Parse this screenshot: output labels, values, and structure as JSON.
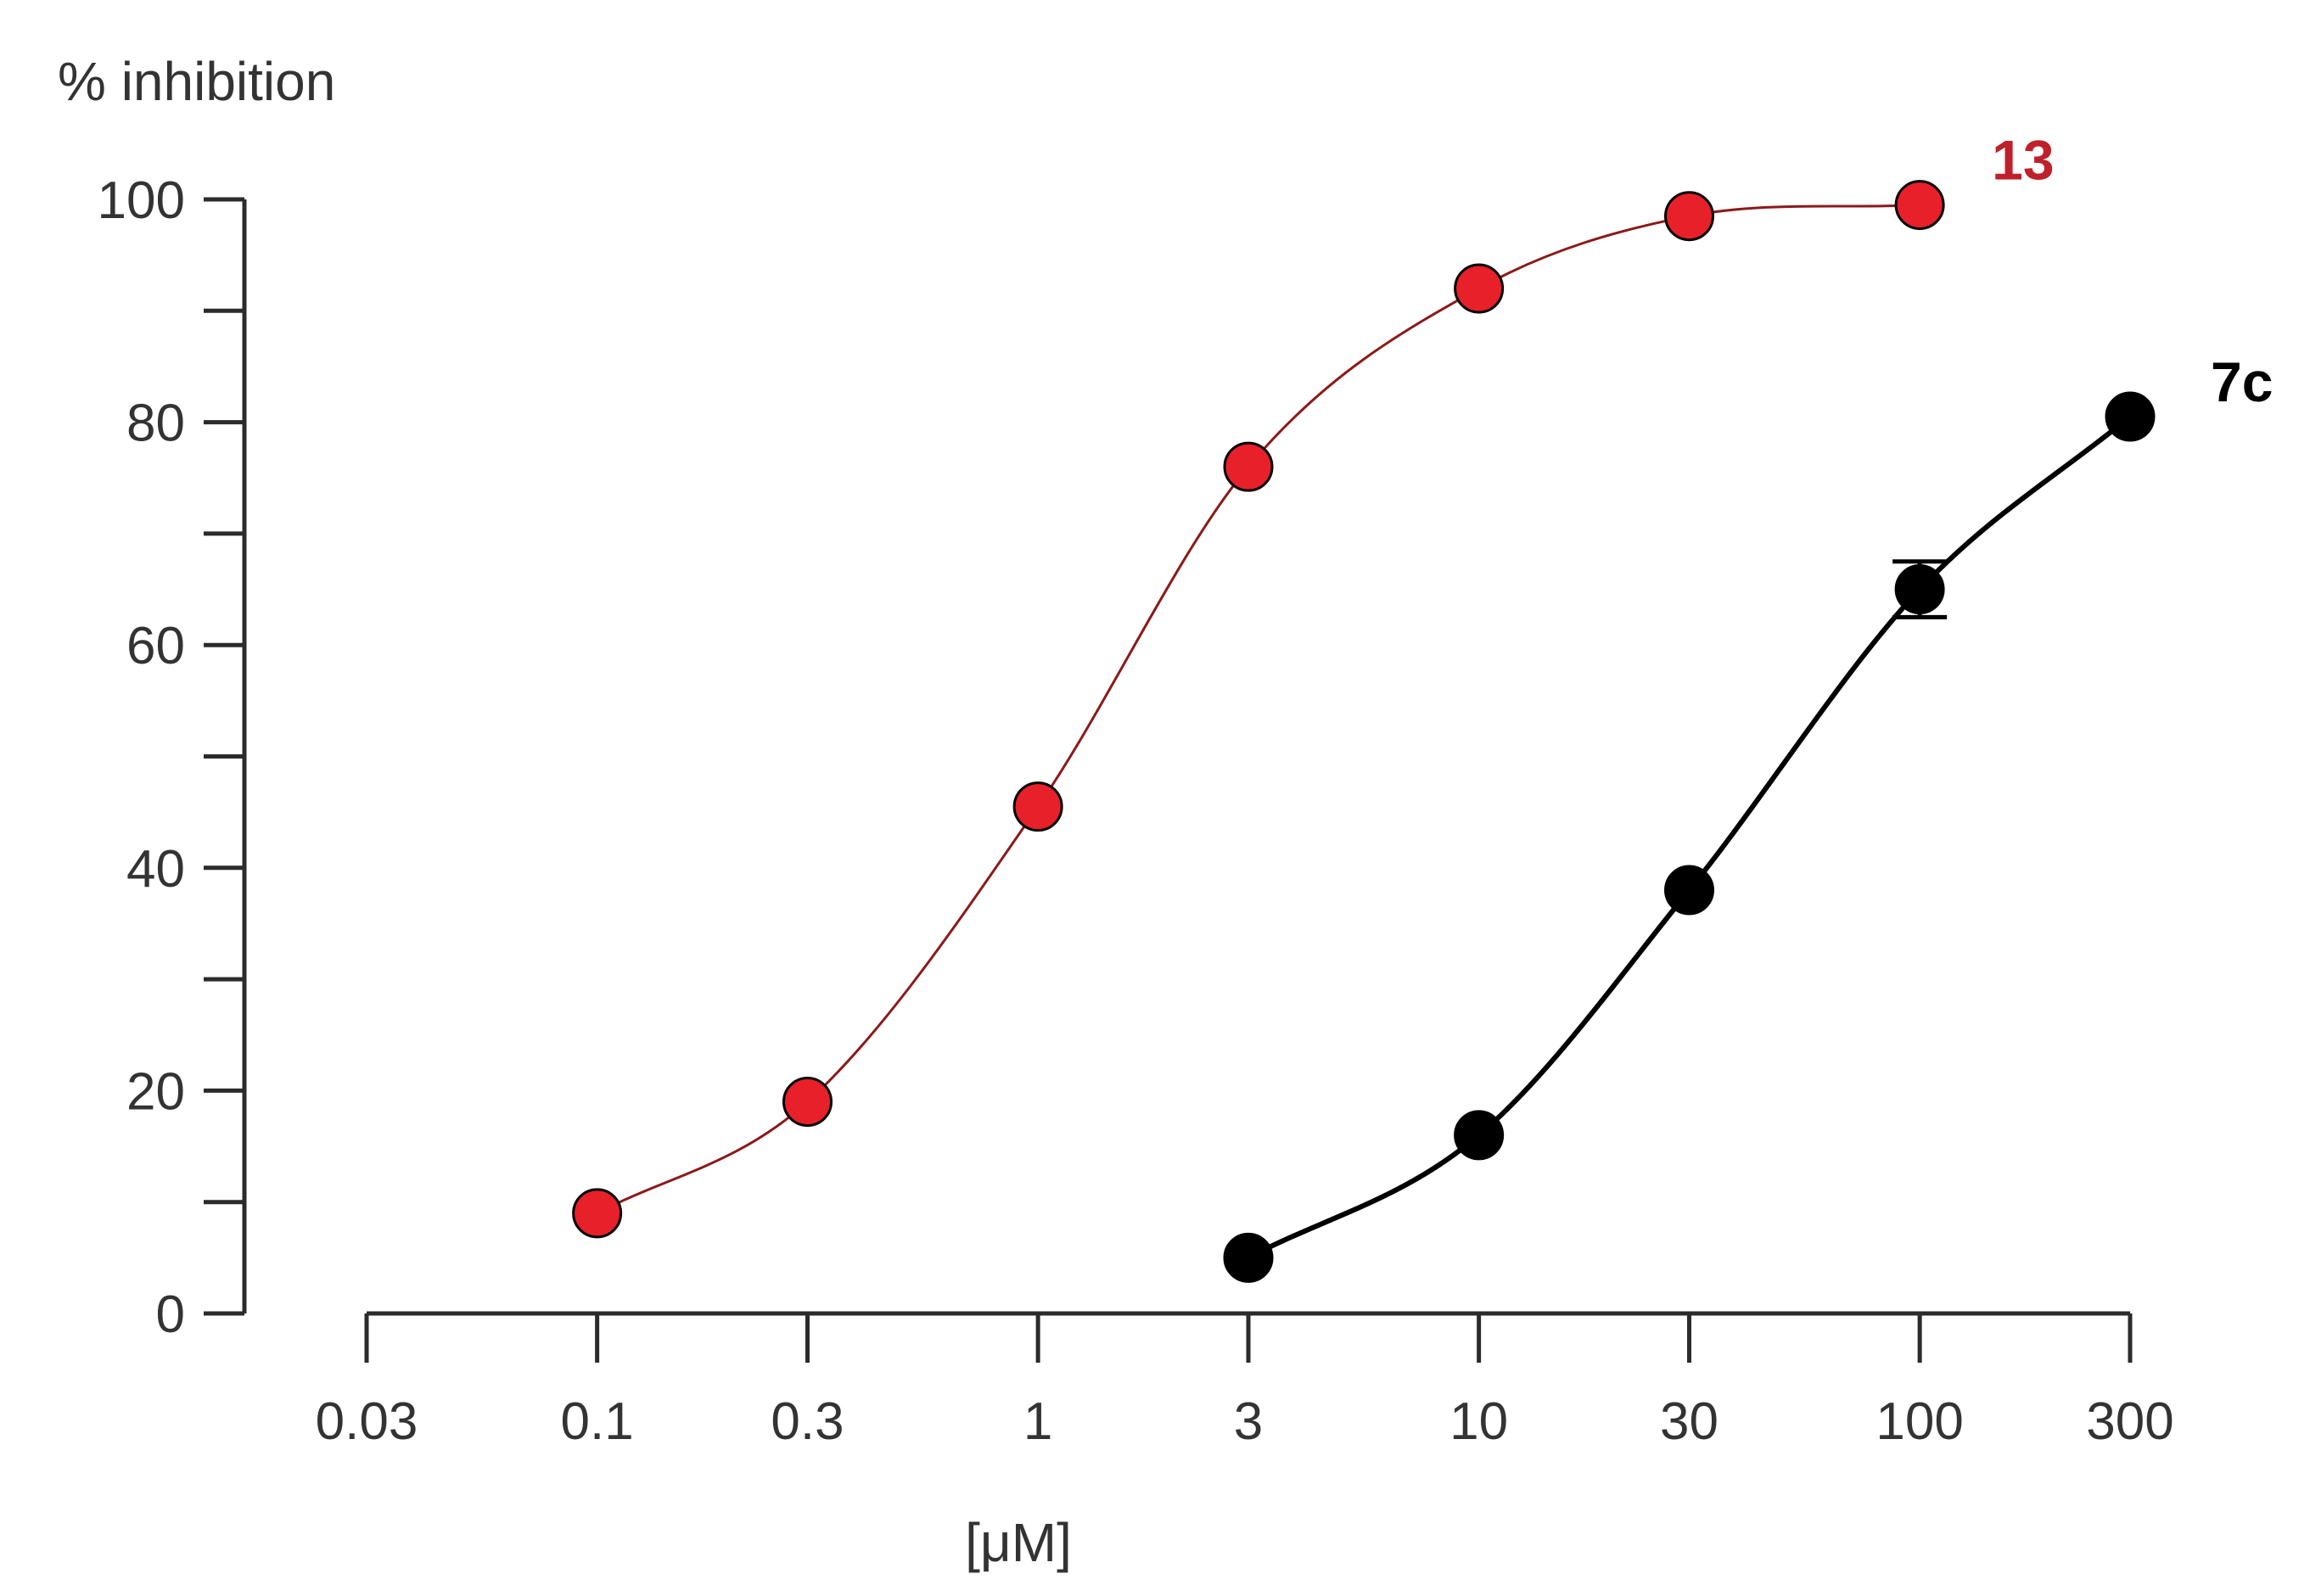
{
  "chart_data": {
    "type": "scatter",
    "x_scale": "log",
    "ylabel": "% inhibition",
    "xlabel": "[μM]",
    "xlim": [
      0.03,
      300
    ],
    "ylim": [
      0,
      100
    ],
    "x_ticks": [
      0.03,
      0.1,
      0.3,
      1,
      3,
      10,
      30,
      100,
      300
    ],
    "x_tick_labels": [
      "0.03",
      "0.1",
      "0.3",
      "1",
      "3",
      "10",
      "30",
      "100",
      "300"
    ],
    "y_ticks": [
      0,
      20,
      40,
      60,
      80,
      100
    ],
    "y_tick_labels": [
      "0",
      "20",
      "40",
      "60",
      "80",
      "100"
    ],
    "y_minor_ticks": [
      10,
      30,
      50,
      70,
      90
    ],
    "grid": false,
    "series": [
      {
        "name": "13",
        "color": "#e8202a",
        "line_color": "#8b1a1a",
        "fit": "sigmoid",
        "x": [
          0.1,
          0.3,
          1,
          3,
          10,
          30,
          100
        ],
        "y": [
          9,
          19,
          45.5,
          76,
          92,
          98.5,
          99.5
        ]
      },
      {
        "name": "7c",
        "color": "#000000",
        "line_color": "#000000",
        "fit": "sigmoid",
        "x": [
          3,
          10,
          30,
          100,
          300
        ],
        "y": [
          5,
          16,
          38,
          65,
          80.5
        ],
        "y_err": [
          0,
          0,
          0,
          2.5,
          0
        ]
      }
    ]
  }
}
